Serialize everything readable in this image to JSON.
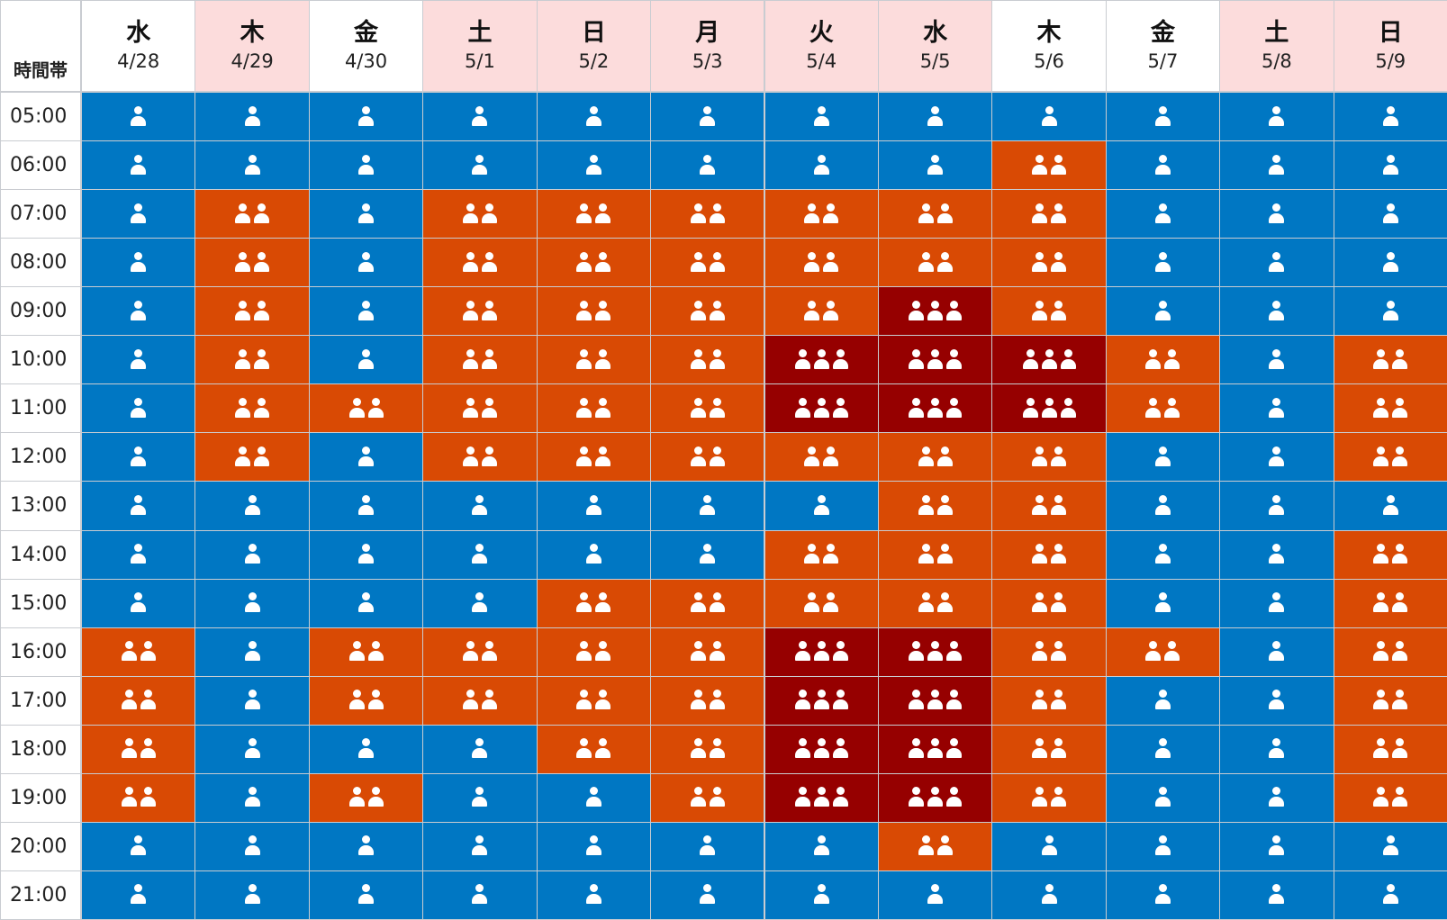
{
  "corner_label": "時間帯",
  "chart_data": {
    "type": "heatmap",
    "title": "",
    "legend": "icon count = crowd level (1 blue, 2 orange, 3 dark red)",
    "columns": [
      {
        "dow": "水",
        "date": "4/28",
        "holiday": false
      },
      {
        "dow": "木",
        "date": "4/29",
        "holiday": true
      },
      {
        "dow": "金",
        "date": "4/30",
        "holiday": false
      },
      {
        "dow": "土",
        "date": "5/1",
        "holiday": true
      },
      {
        "dow": "日",
        "date": "5/2",
        "holiday": true
      },
      {
        "dow": "月",
        "date": "5/3",
        "holiday": true
      },
      {
        "dow": "火",
        "date": "5/4",
        "holiday": true
      },
      {
        "dow": "水",
        "date": "5/5",
        "holiday": true
      },
      {
        "dow": "木",
        "date": "5/6",
        "holiday": false
      },
      {
        "dow": "金",
        "date": "5/7",
        "holiday": false
      },
      {
        "dow": "土",
        "date": "5/8",
        "holiday": true
      },
      {
        "dow": "日",
        "date": "5/9",
        "holiday": true
      }
    ],
    "times": [
      "05:00",
      "06:00",
      "07:00",
      "08:00",
      "09:00",
      "10:00",
      "11:00",
      "12:00",
      "13:00",
      "14:00",
      "15:00",
      "16:00",
      "17:00",
      "18:00",
      "19:00",
      "20:00",
      "21:00"
    ],
    "levels": [
      [
        1,
        1,
        1,
        1,
        1,
        1,
        1,
        1,
        1,
        1,
        1,
        1
      ],
      [
        1,
        1,
        1,
        1,
        1,
        1,
        1,
        1,
        2,
        1,
        1,
        1
      ],
      [
        1,
        2,
        1,
        2,
        2,
        2,
        2,
        2,
        2,
        1,
        1,
        1
      ],
      [
        1,
        2,
        1,
        2,
        2,
        2,
        2,
        2,
        2,
        1,
        1,
        1
      ],
      [
        1,
        2,
        1,
        2,
        2,
        2,
        2,
        3,
        2,
        1,
        1,
        1
      ],
      [
        1,
        2,
        1,
        2,
        2,
        2,
        3,
        3,
        3,
        2,
        1,
        2
      ],
      [
        1,
        2,
        2,
        2,
        2,
        2,
        3,
        3,
        3,
        2,
        1,
        2
      ],
      [
        1,
        2,
        1,
        2,
        2,
        2,
        2,
        2,
        2,
        1,
        1,
        2
      ],
      [
        1,
        1,
        1,
        1,
        1,
        1,
        1,
        2,
        2,
        1,
        1,
        1
      ],
      [
        1,
        1,
        1,
        1,
        1,
        1,
        2,
        2,
        2,
        1,
        1,
        2
      ],
      [
        1,
        1,
        1,
        1,
        2,
        2,
        2,
        2,
        2,
        1,
        1,
        2
      ],
      [
        2,
        1,
        2,
        2,
        2,
        2,
        3,
        3,
        2,
        2,
        1,
        2
      ],
      [
        2,
        1,
        2,
        2,
        2,
        2,
        3,
        3,
        2,
        1,
        1,
        2
      ],
      [
        2,
        1,
        1,
        1,
        2,
        2,
        3,
        3,
        2,
        1,
        1,
        2
      ],
      [
        2,
        1,
        2,
        1,
        1,
        2,
        3,
        3,
        2,
        1,
        1,
        2
      ],
      [
        1,
        1,
        1,
        1,
        1,
        1,
        1,
        2,
        1,
        1,
        1,
        1
      ],
      [
        1,
        1,
        1,
        1,
        1,
        1,
        1,
        1,
        1,
        1,
        1,
        1
      ]
    ],
    "colors": {
      "1": "#0077c3",
      "2": "#d94a04",
      "3": "#960000",
      "holiday_header": "#fcdcdc"
    }
  }
}
